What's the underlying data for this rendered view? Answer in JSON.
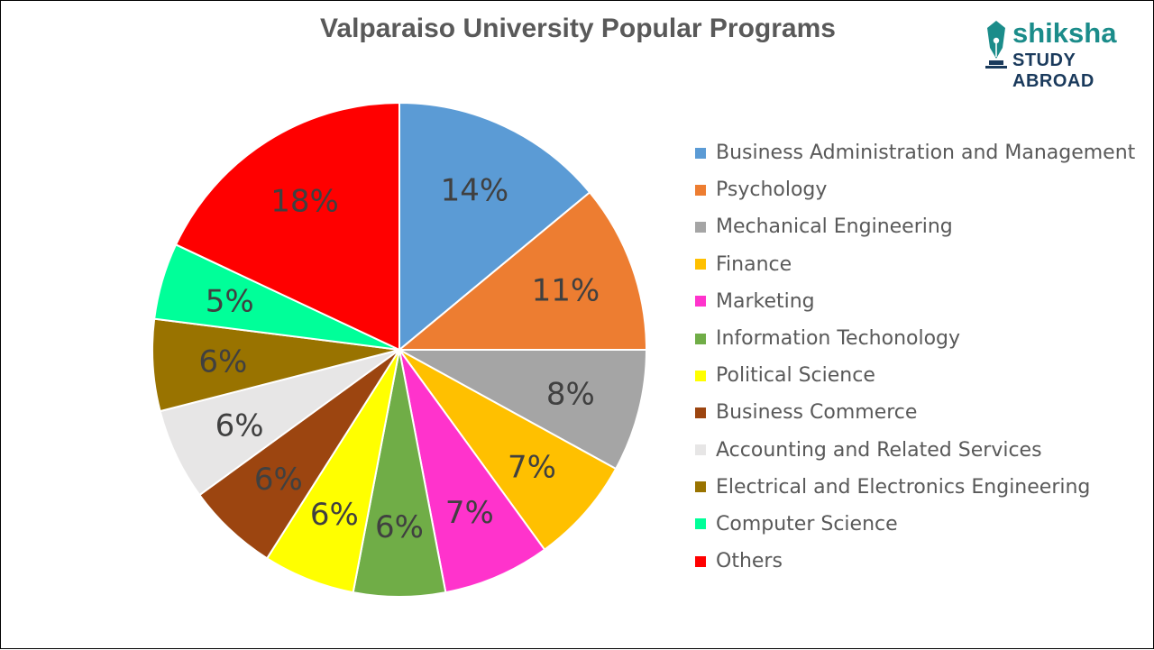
{
  "brand": {
    "word": "shiksha",
    "sub": "STUDY ABROAD",
    "icon": "pen-nib-icon",
    "colors": {
      "word": "#1b8c8a",
      "sub": "#1a3a5c"
    }
  },
  "chart_data": {
    "type": "pie",
    "title": "Valparaiso University Popular Programs",
    "legend_position": "right",
    "slices": [
      {
        "label": "Business Administration and Management",
        "value": 14,
        "display": "14%",
        "color": "#5b9bd5"
      },
      {
        "label": "Psychology",
        "value": 11,
        "display": "11%",
        "color": "#ed7d31"
      },
      {
        "label": "Mechanical Engineering",
        "value": 8,
        "display": "8%",
        "color": "#a5a5a5"
      },
      {
        "label": "Finance",
        "value": 7,
        "display": "7%",
        "color": "#ffc000"
      },
      {
        "label": "Marketing",
        "value": 7,
        "display": "7%",
        "color": "#ff33cc"
      },
      {
        "label": "Information Techonology",
        "value": 6,
        "display": "6%",
        "color": "#70ad47"
      },
      {
        "label": "Political Science",
        "value": 6,
        "display": "6%",
        "color": "#ffff00"
      },
      {
        "label": "Business Commerce",
        "value": 6,
        "display": "6%",
        "color": "#9c4510"
      },
      {
        "label": "Accounting and Related Services",
        "value": 6,
        "display": "6%",
        "color": "#e7e6e6"
      },
      {
        "label": "Electrical and Electronics Engineering",
        "value": 6,
        "display": "6%",
        "color": "#997300"
      },
      {
        "label": "Computer Science",
        "value": 5,
        "display": "5%",
        "color": "#00ff99"
      },
      {
        "label": "Others",
        "value": 18,
        "display": "18%",
        "color": "#ff0000"
      }
    ]
  }
}
